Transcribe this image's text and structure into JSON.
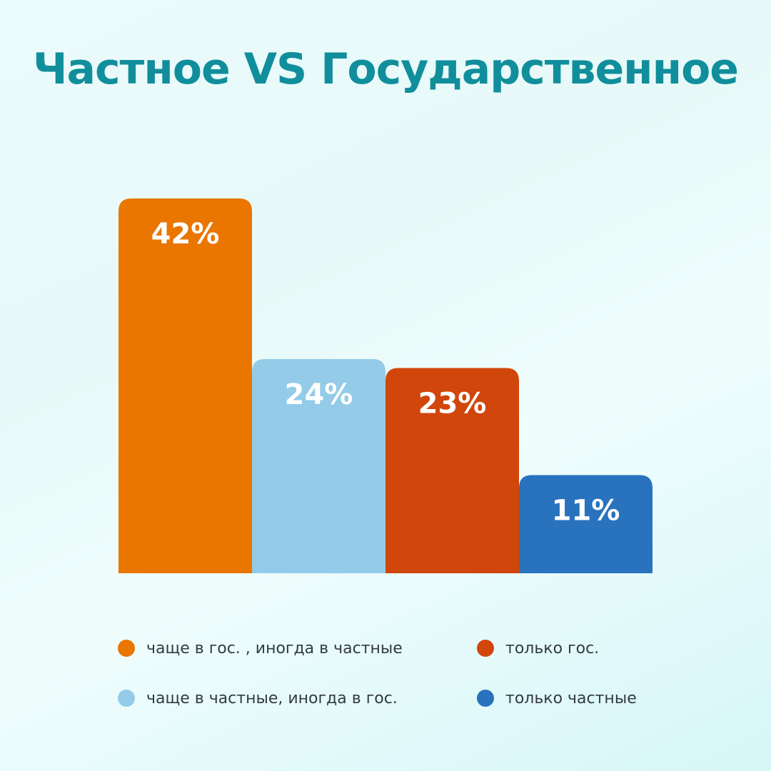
{
  "chart_data": {
    "type": "bar",
    "title": "Частное VS Государственное",
    "categories": [
      "чаще в гос. , иногда в частные",
      "чаще в частные, иногда в гос.",
      "только гос.",
      "только частные"
    ],
    "values": [
      42,
      24,
      23,
      11
    ],
    "value_labels": [
      "42%",
      "24%",
      "23%",
      "11%"
    ],
    "colors": [
      "#ea7600",
      "#93cbe8",
      "#d1460b",
      "#2872be"
    ],
    "ylim": [
      0,
      42
    ],
    "grid": false,
    "legend_placement": "bottom"
  }
}
